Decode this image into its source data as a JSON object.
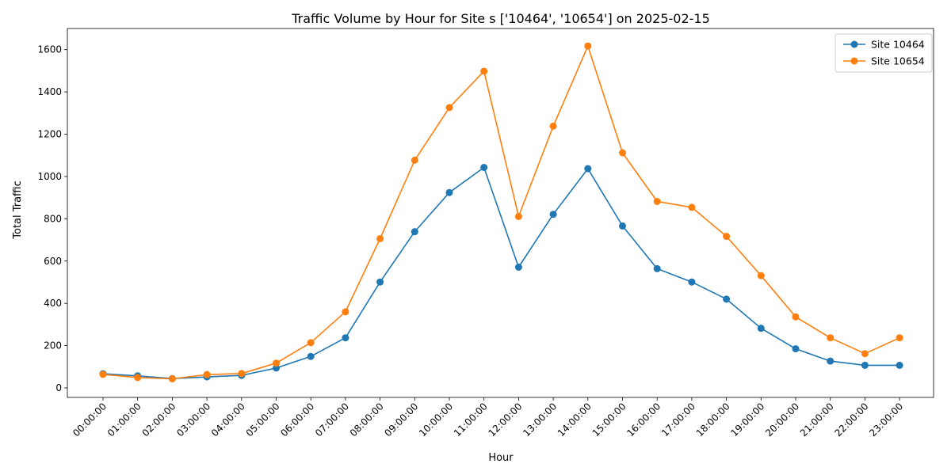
{
  "chart_data": {
    "type": "line",
    "title": "Traffic Volume by Hour for Site s ['10464', '10654'] on 2025-02-15",
    "xlabel": "Hour",
    "ylabel": "Total Traffic",
    "ylim": [
      -45,
      1700
    ],
    "yticks": [
      0,
      200,
      400,
      600,
      800,
      1000,
      1200,
      1400,
      1600
    ],
    "grid": false,
    "legend_position": "top-right",
    "categories": [
      "00:00:00",
      "01:00:00",
      "02:00:00",
      "03:00:00",
      "04:00:00",
      "05:00:00",
      "06:00:00",
      "07:00:00",
      "08:00:00",
      "09:00:00",
      "10:00:00",
      "11:00:00",
      "12:00:00",
      "13:00:00",
      "14:00:00",
      "15:00:00",
      "16:00:00",
      "17:00:00",
      "18:00:00",
      "19:00:00",
      "20:00:00",
      "21:00:00",
      "22:00:00",
      "23:00:00"
    ],
    "series": [
      {
        "name": "Site 10464",
        "color": "#1f77b4",
        "values": [
          67,
          57,
          44,
          52,
          59,
          94,
          149,
          237,
          501,
          739,
          924,
          1043,
          571,
          821,
          1037,
          766,
          564,
          501,
          420,
          282,
          185,
          127,
          107,
          107
        ]
      },
      {
        "name": "Site 10654",
        "color": "#ff7f0e",
        "values": [
          64,
          49,
          43,
          63,
          68,
          117,
          214,
          360,
          706,
          1077,
          1326,
          1498,
          811,
          1238,
          1617,
          1112,
          882,
          854,
          717,
          531,
          336,
          237,
          162,
          237
        ]
      }
    ]
  }
}
